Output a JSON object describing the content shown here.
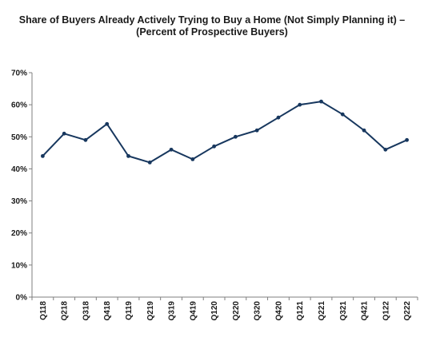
{
  "chart_data": {
    "type": "line",
    "title_line1": "Share of Buyers Already Actively Trying to Buy a Home (Not Simply Planning it) –",
    "title_line2": "(Percent of Prospective Buyers)",
    "categories": [
      "Q118",
      "Q218",
      "Q318",
      "Q418",
      "Q119",
      "Q219",
      "Q319",
      "Q419",
      "Q120",
      "Q220",
      "Q320",
      "Q420",
      "Q121",
      "Q221",
      "Q321",
      "Q421",
      "Q122",
      "Q222"
    ],
    "series": [
      {
        "values": [
          44,
          51,
          49,
          54,
          44,
          42,
          46,
          43,
          47,
          50,
          52,
          56,
          60,
          61,
          57,
          52,
          46,
          49
        ]
      }
    ],
    "ylim": [
      0,
      70
    ],
    "yticks": [
      0,
      10,
      20,
      30,
      40,
      50,
      60,
      70
    ],
    "ytick_suffix": "%",
    "grid": false,
    "line_color": "#17375e"
  }
}
